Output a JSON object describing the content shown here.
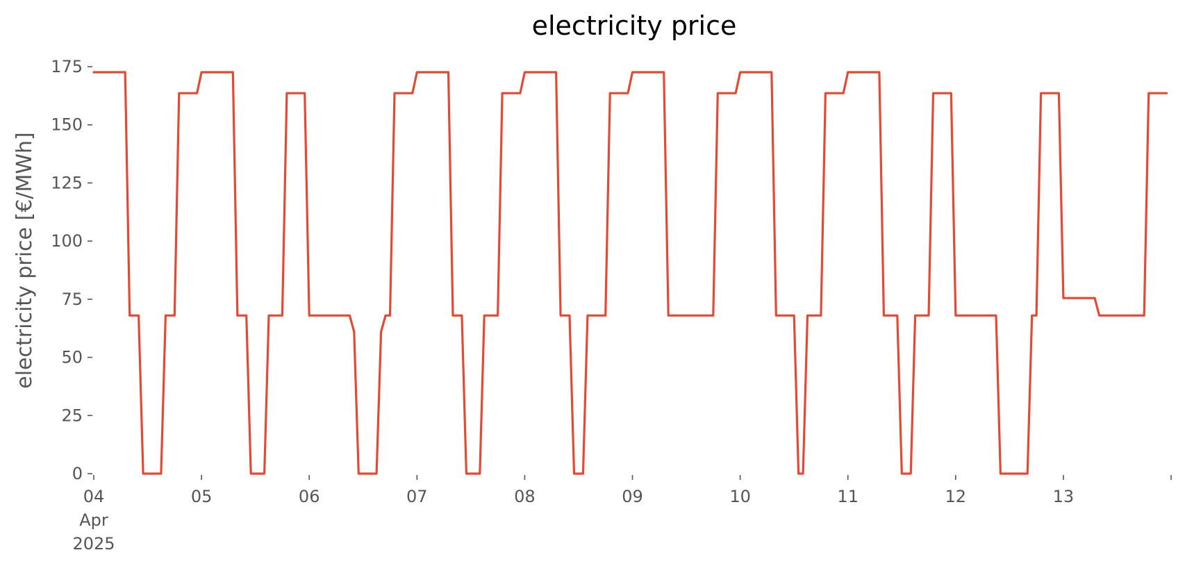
{
  "chart_data": {
    "type": "line",
    "title": "electricity price",
    "xlabel": "",
    "ylabel": "electricity price [€/MWh]",
    "ylim": [
      0,
      175
    ],
    "xlim": [
      "2025-04-04T00:00",
      "2025-04-13T23:00"
    ],
    "yticks": [
      0,
      25,
      50,
      75,
      100,
      125,
      150,
      175
    ],
    "xticks": [
      {
        "x": "2025-04-04T00:00",
        "lines": [
          "04",
          "Apr",
          "2025"
        ]
      },
      {
        "x": "2025-04-05T00:00",
        "lines": [
          "05"
        ]
      },
      {
        "x": "2025-04-06T00:00",
        "lines": [
          "06"
        ]
      },
      {
        "x": "2025-04-07T00:00",
        "lines": [
          "07"
        ]
      },
      {
        "x": "2025-04-08T00:00",
        "lines": [
          "08"
        ]
      },
      {
        "x": "2025-04-09T00:00",
        "lines": [
          "09"
        ]
      },
      {
        "x": "2025-04-10T00:00",
        "lines": [
          "10"
        ]
      },
      {
        "x": "2025-04-11T00:00",
        "lines": [
          "11"
        ]
      },
      {
        "x": "2025-04-12T00:00",
        "lines": [
          "12"
        ]
      },
      {
        "x": "2025-04-13T00:00",
        "lines": [
          "13"
        ]
      },
      {
        "x": "2025-04-14T00:00",
        "lines": []
      }
    ],
    "grid": false,
    "colors": {
      "line": "#e24a33"
    },
    "series": [
      {
        "color": "#e24a33",
        "points": [
          [
            "2025-04-04T00:00",
            172.6
          ],
          [
            "2025-04-04T07:00",
            172.6
          ],
          [
            "2025-04-04T08:00",
            68
          ],
          [
            "2025-04-04T10:00",
            68
          ],
          [
            "2025-04-04T11:00",
            0
          ],
          [
            "2025-04-04T15:00",
            0
          ],
          [
            "2025-04-04T16:00",
            68
          ],
          [
            "2025-04-04T18:00",
            68
          ],
          [
            "2025-04-04T19:00",
            163.6
          ],
          [
            "2025-04-04T23:00",
            163.6
          ],
          [
            "2025-04-05T00:00",
            172.6
          ],
          [
            "2025-04-05T07:00",
            172.6
          ],
          [
            "2025-04-05T08:00",
            68
          ],
          [
            "2025-04-05T10:00",
            68
          ],
          [
            "2025-04-05T11:00",
            0
          ],
          [
            "2025-04-05T14:00",
            0
          ],
          [
            "2025-04-05T15:00",
            68
          ],
          [
            "2025-04-05T18:00",
            68
          ],
          [
            "2025-04-05T19:00",
            163.6
          ],
          [
            "2025-04-05T23:00",
            163.6
          ],
          [
            "2025-04-06T00:00",
            68
          ],
          [
            "2025-04-06T09:00",
            68
          ],
          [
            "2025-04-06T10:00",
            61
          ],
          [
            "2025-04-06T11:00",
            0
          ],
          [
            "2025-04-06T15:00",
            0
          ],
          [
            "2025-04-06T16:00",
            61
          ],
          [
            "2025-04-06T17:00",
            68
          ],
          [
            "2025-04-06T18:00",
            68
          ],
          [
            "2025-04-06T19:00",
            163.6
          ],
          [
            "2025-04-06T23:00",
            163.6
          ],
          [
            "2025-04-07T00:00",
            172.6
          ],
          [
            "2025-04-07T07:00",
            172.6
          ],
          [
            "2025-04-07T08:00",
            68
          ],
          [
            "2025-04-07T10:00",
            68
          ],
          [
            "2025-04-07T11:00",
            0
          ],
          [
            "2025-04-07T14:00",
            0
          ],
          [
            "2025-04-07T15:00",
            68
          ],
          [
            "2025-04-07T18:00",
            68
          ],
          [
            "2025-04-07T19:00",
            163.6
          ],
          [
            "2025-04-07T23:00",
            163.6
          ],
          [
            "2025-04-08T00:00",
            172.6
          ],
          [
            "2025-04-08T07:00",
            172.6
          ],
          [
            "2025-04-08T08:00",
            68
          ],
          [
            "2025-04-08T10:00",
            68
          ],
          [
            "2025-04-08T11:00",
            0
          ],
          [
            "2025-04-08T13:00",
            0
          ],
          [
            "2025-04-08T14:00",
            68
          ],
          [
            "2025-04-08T18:00",
            68
          ],
          [
            "2025-04-08T19:00",
            163.6
          ],
          [
            "2025-04-08T23:00",
            163.6
          ],
          [
            "2025-04-09T00:00",
            172.6
          ],
          [
            "2025-04-09T07:00",
            172.6
          ],
          [
            "2025-04-09T08:00",
            68
          ],
          [
            "2025-04-09T18:00",
            68
          ],
          [
            "2025-04-09T19:00",
            163.6
          ],
          [
            "2025-04-09T23:00",
            163.6
          ],
          [
            "2025-04-10T00:00",
            172.6
          ],
          [
            "2025-04-10T07:00",
            172.6
          ],
          [
            "2025-04-10T08:00",
            68
          ],
          [
            "2025-04-10T12:00",
            68
          ],
          [
            "2025-04-10T13:00",
            0
          ],
          [
            "2025-04-10T14:00",
            0
          ],
          [
            "2025-04-10T15:00",
            68
          ],
          [
            "2025-04-10T18:00",
            68
          ],
          [
            "2025-04-10T19:00",
            163.6
          ],
          [
            "2025-04-10T23:00",
            163.6
          ],
          [
            "2025-04-11T00:00",
            172.6
          ],
          [
            "2025-04-11T07:00",
            172.6
          ],
          [
            "2025-04-11T08:00",
            68
          ],
          [
            "2025-04-11T11:00",
            68
          ],
          [
            "2025-04-11T12:00",
            0
          ],
          [
            "2025-04-11T14:00",
            0
          ],
          [
            "2025-04-11T15:00",
            68
          ],
          [
            "2025-04-11T18:00",
            68
          ],
          [
            "2025-04-11T19:00",
            163.6
          ],
          [
            "2025-04-11T23:00",
            163.6
          ],
          [
            "2025-04-12T00:00",
            68
          ],
          [
            "2025-04-12T09:00",
            68
          ],
          [
            "2025-04-12T10:00",
            0
          ],
          [
            "2025-04-12T16:00",
            0
          ],
          [
            "2025-04-12T17:00",
            68
          ],
          [
            "2025-04-12T18:00",
            68
          ],
          [
            "2025-04-12T19:00",
            163.6
          ],
          [
            "2025-04-12T23:00",
            163.6
          ],
          [
            "2025-04-13T00:00",
            75.5
          ],
          [
            "2025-04-13T07:00",
            75.5
          ],
          [
            "2025-04-13T08:00",
            68
          ],
          [
            "2025-04-13T18:00",
            68
          ],
          [
            "2025-04-13T19:00",
            163.6
          ],
          [
            "2025-04-13T23:00",
            163.6
          ]
        ]
      }
    ]
  }
}
